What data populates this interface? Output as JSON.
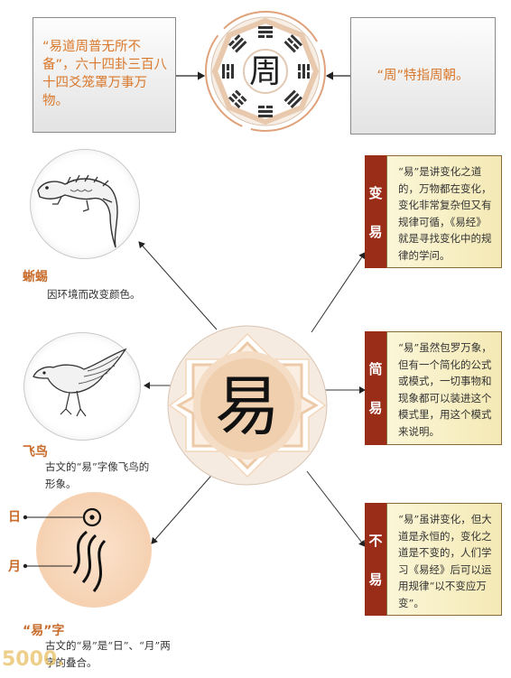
{
  "top": {
    "left_text": "“易道周普无所不备”，六十四卦三百八十四爻笼罩万事万物。",
    "right_text": "“周”特指周朝。",
    "center_glyph": "周"
  },
  "left": {
    "lizard": {
      "title": "蜥蜴",
      "desc": "因环境而改变颜色。"
    },
    "bird": {
      "title": "飞鸟",
      "desc": "古文的“易”字像飞鸟的形象。"
    },
    "glyph": {
      "title": "“易”字",
      "desc": "古文的“易”是“日”、“月”两字的叠合。",
      "sun_label": "日",
      "moon_label": "月"
    }
  },
  "right": [
    {
      "tag1": "变",
      "tag2": "易",
      "text": "“易”是讲变化之道的，万物都在变化，变化非常复杂但又有规律可循，《易经》就是寻找变化中的规律的学问。"
    },
    {
      "tag1": "简",
      "tag2": "易",
      "text": "“易”虽然包罗万象，但有一个简化的公式或模式，一切事物和现象都可以装进这个模式里，用这个模式来说明。"
    },
    {
      "tag1": "不",
      "tag2": "易",
      "text": "“易”虽讲变化，但大道是永恒的，变化之道是不变的，人们学习《易经》后可以运用规律“以不变应万变”。"
    }
  ],
  "center_glyph": "易",
  "watermark": "5000."
}
